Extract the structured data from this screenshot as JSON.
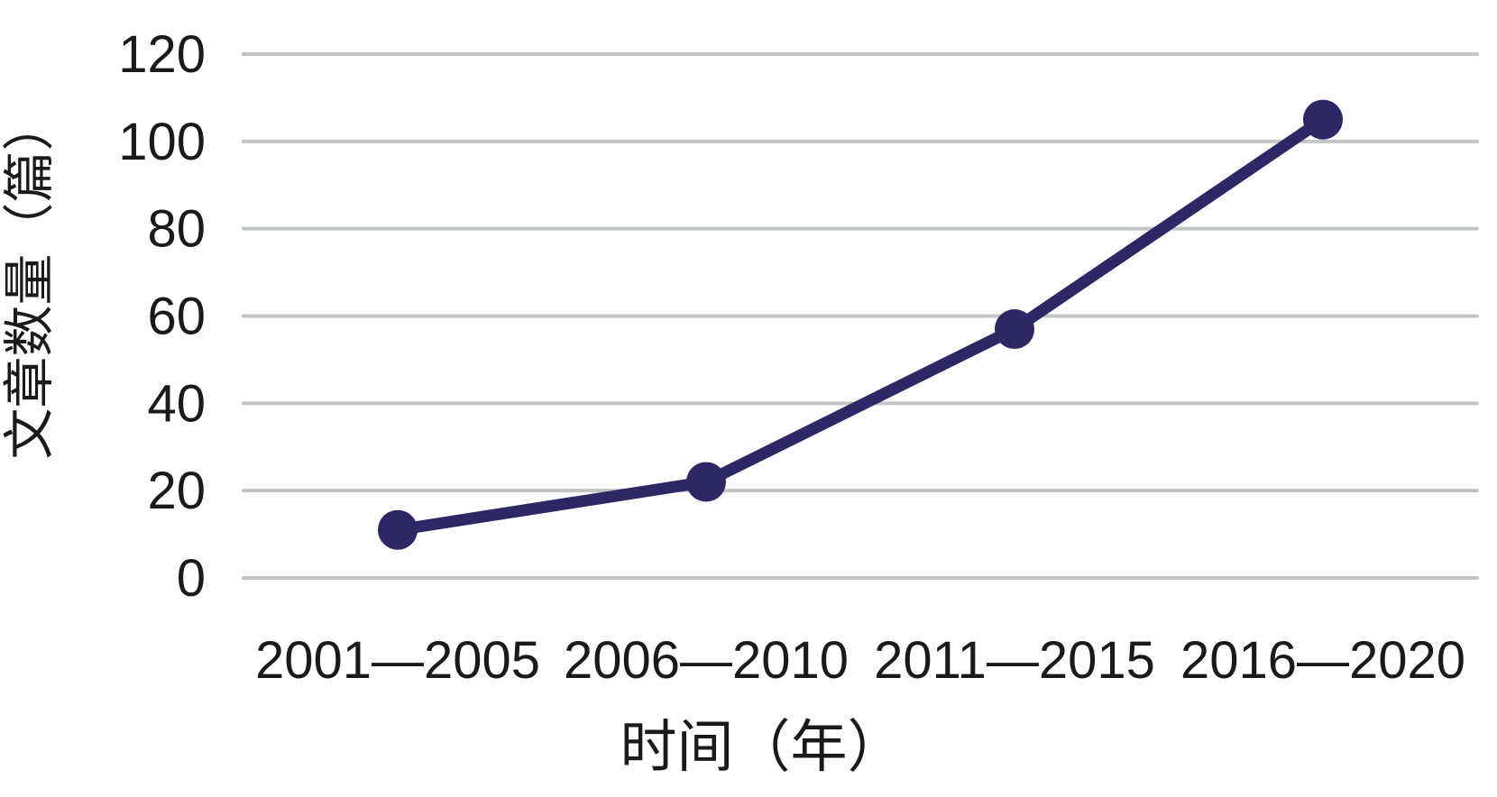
{
  "chart_data": {
    "type": "line",
    "categories": [
      "2001—2005",
      "2006—2010",
      "2011—2015",
      "2016—2020"
    ],
    "series": [
      {
        "name": "文章数量",
        "values": [
          11,
          22,
          57,
          105
        ]
      }
    ],
    "title": "",
    "xlabel": "时间（年）",
    "ylabel": "文章数量（篇）",
    "ylim": [
      0,
      120
    ],
    "yticks": [
      0,
      20,
      40,
      60,
      80,
      100,
      120
    ],
    "grid": "horizontal",
    "legend": "none",
    "line_color": "#2e2766",
    "marker_color": "#2e2766",
    "grid_color": "#c1c5c6",
    "text_color": "#1a1a1a",
    "background": "#ffffff"
  }
}
